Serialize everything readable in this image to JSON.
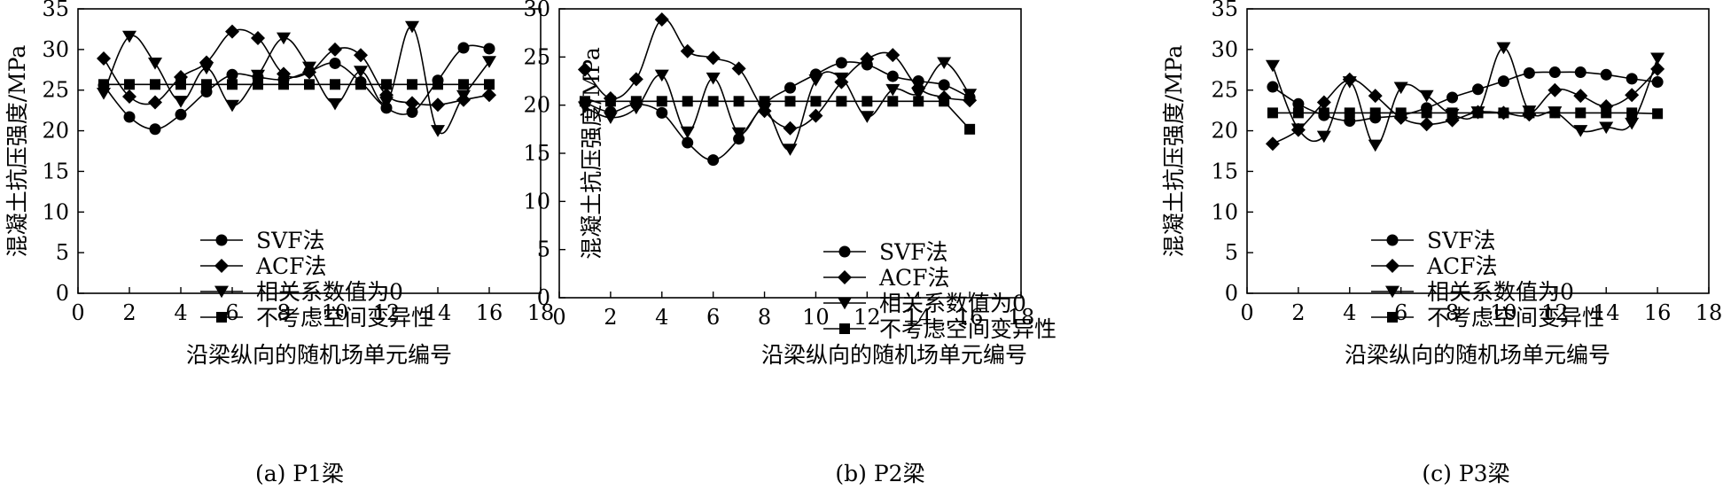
{
  "chart_data": [
    {
      "type": "line",
      "caption": "(a) P1梁",
      "xlabel": "沿梁纵向的随机场单元编号",
      "ylabel": "混凝土抗压强度/MPa",
      "xlim": [
        0,
        18
      ],
      "ylim": [
        0,
        35
      ],
      "xticks": [
        0,
        2,
        4,
        6,
        8,
        10,
        12,
        14,
        16,
        18
      ],
      "yticks": [
        0,
        5,
        10,
        15,
        20,
        25,
        30,
        35
      ],
      "grid": false,
      "legend_position": "lower-left",
      "x": [
        1,
        2,
        3,
        4,
        5,
        6,
        7,
        8,
        9,
        10,
        11,
        12,
        13,
        14,
        15,
        16
      ],
      "series": [
        {
          "name": "SVF法",
          "marker": "circle",
          "values": [
            25.6,
            21.7,
            20.2,
            22.0,
            24.8,
            26.9,
            26.6,
            26.3,
            27.3,
            28.3,
            26.0,
            22.8,
            22.3,
            26.2,
            30.2,
            30.1
          ]
        },
        {
          "name": "ACF法",
          "marker": "diamond",
          "values": [
            28.9,
            24.2,
            23.5,
            26.6,
            28.4,
            32.2,
            31.4,
            27.0,
            27.2,
            30.0,
            29.3,
            24.4,
            23.4,
            23.2,
            23.8,
            24.4
          ]
        },
        {
          "name": "相关系数值为0",
          "marker": "triangle-down",
          "values": [
            24.6,
            31.6,
            28.3,
            23.6,
            27.7,
            23.1,
            26.8,
            31.4,
            27.8,
            23.3,
            27.3,
            23.5,
            32.8,
            20.0,
            24.3,
            28.5
          ]
        },
        {
          "name": "不考虑空间变异性",
          "marker": "square",
          "values": [
            25.7,
            25.7,
            25.7,
            25.7,
            25.7,
            25.7,
            25.7,
            25.7,
            25.7,
            25.7,
            25.7,
            25.7,
            25.7,
            25.7,
            25.7,
            25.7
          ]
        }
      ]
    },
    {
      "type": "line",
      "caption": "(b) P2梁",
      "xlabel": "沿梁纵向的随机场单元编号",
      "ylabel": "混凝土抗压强度/MPa",
      "xlim": [
        0,
        18
      ],
      "ylim": [
        0,
        30
      ],
      "xticks": [
        0,
        2,
        4,
        6,
        8,
        10,
        12,
        14,
        16,
        18
      ],
      "yticks": [
        0,
        5,
        10,
        15,
        20,
        25,
        30
      ],
      "grid": false,
      "legend_position": "lower-left",
      "x": [
        1,
        2,
        3,
        4,
        5,
        6,
        7,
        8,
        9,
        10,
        11,
        12,
        13,
        14,
        15,
        16
      ],
      "series": [
        {
          "name": "SVF法",
          "marker": "circle",
          "values": [
            20.3,
            19.3,
            20.1,
            19.2,
            16.1,
            14.3,
            16.5,
            20.1,
            21.8,
            23.2,
            24.4,
            24.2,
            23.0,
            22.5,
            22.1,
            20.8
          ]
        },
        {
          "name": "ACF法",
          "marker": "diamond",
          "values": [
            23.7,
            20.7,
            22.7,
            28.9,
            25.6,
            24.9,
            23.8,
            19.4,
            17.6,
            18.9,
            22.4,
            24.8,
            25.2,
            21.8,
            20.8,
            20.5
          ]
        },
        {
          "name": "相关系数值为0",
          "marker": "triangle-down",
          "values": [
            19.8,
            18.7,
            19.7,
            23.1,
            17.2,
            22.8,
            17.1,
            19.6,
            15.4,
            22.6,
            22.8,
            18.8,
            21.6,
            21.2,
            24.4,
            21.1
          ]
        },
        {
          "name": "不考虑空间变异性",
          "marker": "square",
          "values": [
            20.4,
            20.4,
            20.4,
            20.4,
            20.4,
            20.4,
            20.4,
            20.4,
            20.4,
            20.4,
            20.4,
            20.4,
            20.4,
            20.4,
            20.4,
            17.5
          ]
        }
      ]
    },
    {
      "type": "line",
      "caption": "(c) P3梁",
      "xlabel": "沿梁纵向的随机场单元编号",
      "ylabel": "混凝土抗压强度/MPa",
      "xlim": [
        0,
        18
      ],
      "ylim": [
        0,
        35
      ],
      "xticks": [
        0,
        2,
        4,
        6,
        8,
        10,
        12,
        14,
        16,
        18
      ],
      "yticks": [
        0,
        5,
        10,
        15,
        20,
        25,
        30,
        35
      ],
      "grid": false,
      "legend_position": "lower-left",
      "x": [
        1,
        2,
        3,
        4,
        5,
        6,
        7,
        8,
        9,
        10,
        11,
        12,
        13,
        14,
        15,
        16
      ],
      "series": [
        {
          "name": "SVF法",
          "marker": "circle",
          "values": [
            25.4,
            23.3,
            21.9,
            21.2,
            21.6,
            21.9,
            22.8,
            24.1,
            25.1,
            26.1,
            27.1,
            27.2,
            27.2,
            26.9,
            26.4,
            26.0
          ]
        },
        {
          "name": "ACF法",
          "marker": "diamond",
          "values": [
            18.4,
            20.1,
            23.5,
            26.3,
            24.3,
            21.6,
            20.8,
            21.3,
            22.3,
            22.2,
            22.0,
            25.0,
            24.3,
            23.0,
            24.4,
            27.6
          ]
        },
        {
          "name": "相关系数值为0",
          "marker": "triangle-down",
          "values": [
            28.0,
            20.2,
            19.3,
            26.0,
            18.2,
            25.3,
            24.3,
            22.0,
            22.3,
            30.2,
            22.4,
            22.3,
            20.0,
            20.4,
            20.9,
            28.9
          ]
        },
        {
          "name": "不考虑空间变异性",
          "marker": "square",
          "values": [
            22.2,
            22.2,
            22.2,
            22.2,
            22.2,
            22.2,
            22.2,
            22.2,
            22.2,
            22.2,
            22.2,
            22.2,
            22.2,
            22.2,
            22.2,
            22.1
          ]
        }
      ]
    }
  ]
}
